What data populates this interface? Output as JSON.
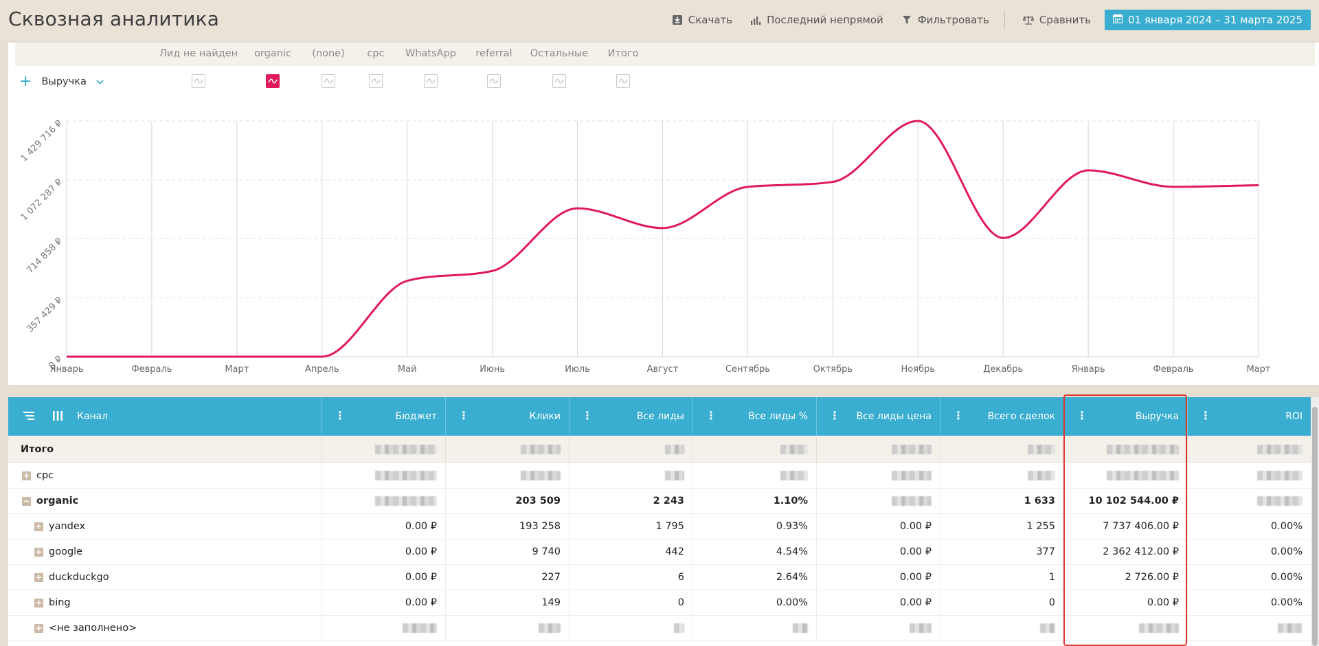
{
  "header": {
    "title": "Сквозная аналитика",
    "actions": {
      "download": "Скачать",
      "attribution": "Последний непрямой",
      "filter": "Фильтровать",
      "compare": "Сравнить"
    },
    "date_range": "01 января 2024 – 31 марта 2025"
  },
  "chart": {
    "metric_label": "Выручка",
    "series_labels": [
      "Лид не найден",
      "organic",
      "(none)",
      "cpc",
      "WhatsApp",
      "referral",
      "Остальные",
      "Итого"
    ],
    "active_series": "organic",
    "accent_color": "#e0195d"
  },
  "chart_data": {
    "type": "line",
    "x": [
      "Январь",
      "Февраль",
      "Март",
      "Апрель",
      "Май",
      "Июнь",
      "Июль",
      "Август",
      "Сентябрь",
      "Октябрь",
      "Ноябрь",
      "Декабрь",
      "Январь",
      "Февраль",
      "Март"
    ],
    "series": [
      {
        "name": "organic",
        "values": [
          0,
          0,
          0,
          0,
          460000,
          520000,
          900000,
          780000,
          1030000,
          1060000,
          1429716,
          720000,
          1130000,
          1030000,
          1040000
        ]
      }
    ],
    "y_ticks": [
      "0 ₽",
      "357 429 ₽",
      "714 858 ₽",
      "1 072 287 ₽",
      "1 429 716 ₽"
    ],
    "ylim": [
      0,
      1429716
    ],
    "grid": true
  },
  "table": {
    "columns": {
      "channel": "Канал",
      "budget": "Бюджет",
      "clicks": "Клики",
      "leads": "Все лиды",
      "leads_pct": "Все лиды %",
      "lead_price": "Все лиды цена",
      "deals": "Всего сделок",
      "revenue": "Выручка",
      "roi": "ROI"
    },
    "total_label": "Итого",
    "rows": [
      {
        "name": "cpc",
        "level": 0,
        "expander": "+"
      },
      {
        "name": "organic",
        "level": 0,
        "expander": "−",
        "clicks": "203 509",
        "leads": "2 243",
        "leads_pct": "1.10%",
        "deals": "1 633",
        "revenue": "10 102 544.00 ₽"
      },
      {
        "name": "yandex",
        "level": 1,
        "expander": "+",
        "budget": "0.00 ₽",
        "clicks": "193 258",
        "leads": "1 795",
        "leads_pct": "0.93%",
        "lead_price": "0.00 ₽",
        "deals": "1 255",
        "revenue": "7 737 406.00 ₽",
        "roi": "0.00%"
      },
      {
        "name": "google",
        "level": 1,
        "expander": "+",
        "budget": "0.00 ₽",
        "clicks": "9 740",
        "leads": "442",
        "leads_pct": "4.54%",
        "lead_price": "0.00 ₽",
        "deals": "377",
        "revenue": "2 362 412.00 ₽",
        "roi": "0.00%"
      },
      {
        "name": "duckduckgo",
        "level": 1,
        "expander": "+",
        "budget": "0.00 ₽",
        "clicks": "227",
        "leads": "6",
        "leads_pct": "2.64%",
        "lead_price": "0.00 ₽",
        "deals": "1",
        "revenue": "2 726.00 ₽",
        "roi": "0.00%"
      },
      {
        "name": "bing",
        "level": 1,
        "expander": "+",
        "budget": "0.00 ₽",
        "clicks": "149",
        "leads": "0",
        "leads_pct": "0.00%",
        "lead_price": "0.00 ₽",
        "deals": "0",
        "revenue": "0.00 ₽",
        "roi": "0.00%"
      },
      {
        "name": "<не заполнено>",
        "level": 1,
        "expander": "+"
      }
    ]
  }
}
